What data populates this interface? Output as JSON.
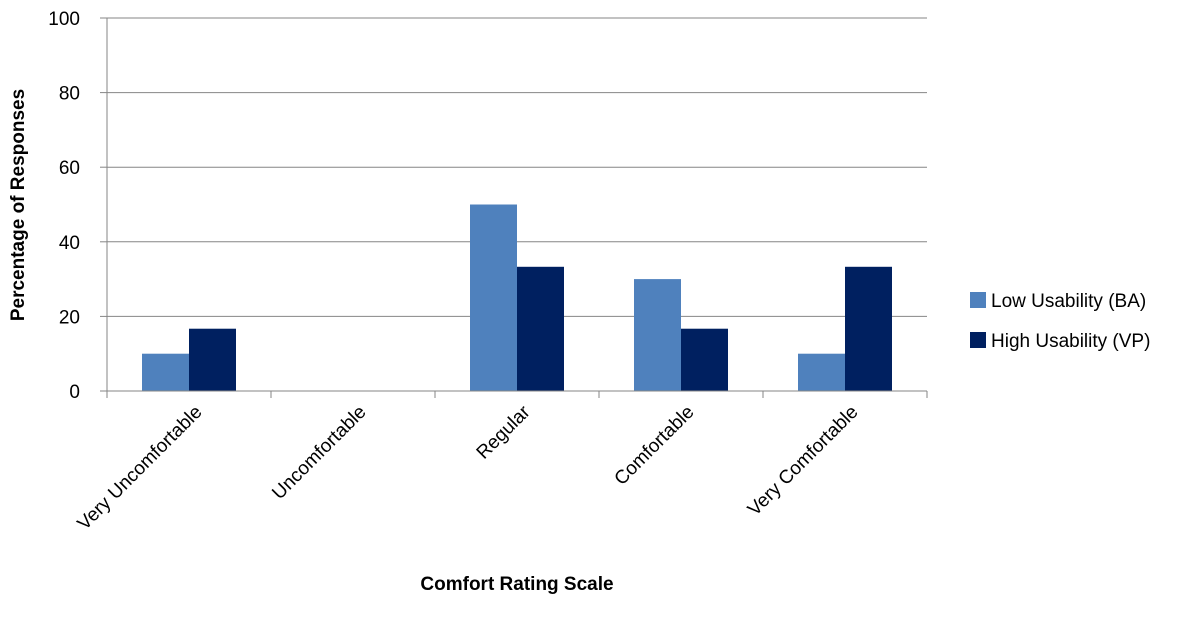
{
  "chart_data": {
    "type": "bar",
    "title": "",
    "xlabel": "Comfort Rating Scale",
    "ylabel": "Percentage of Responses",
    "ylim": [
      0,
      100
    ],
    "yticks": [
      0,
      20,
      40,
      60,
      80,
      100
    ],
    "grid": true,
    "legend_position": "right",
    "categories": [
      "Very Uncomfortable",
      "Uncomfortable",
      "Regular",
      "Comfortable",
      "Very Comfortable"
    ],
    "series": [
      {
        "name": "Low Usability (BA)",
        "color": "#4F81BD",
        "values": [
          10,
          0,
          50,
          30,
          10
        ]
      },
      {
        "name": "High Usability (VP)",
        "color": "#002060",
        "values": [
          16.7,
          0,
          33.3,
          16.7,
          33.3
        ]
      }
    ]
  }
}
